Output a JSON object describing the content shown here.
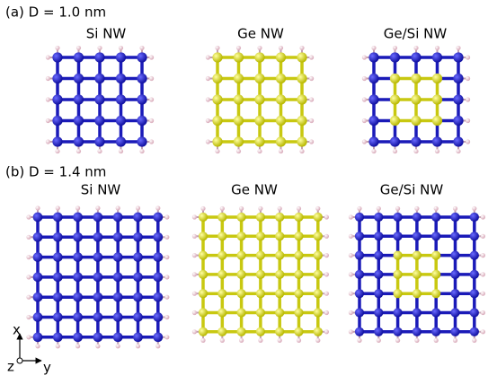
{
  "panels": [
    {
      "label": "(a) D = 1.0 nm",
      "titles": [
        "Si NW",
        "Ge NW",
        "Ge/Si NW"
      ]
    },
    {
      "label": "(b) D = 1.4 nm",
      "titles": [
        "Si NW",
        "Ge NW",
        "Ge/Si NW"
      ]
    }
  ],
  "axes": {
    "x": "x",
    "y": "y",
    "z": "z"
  }
}
